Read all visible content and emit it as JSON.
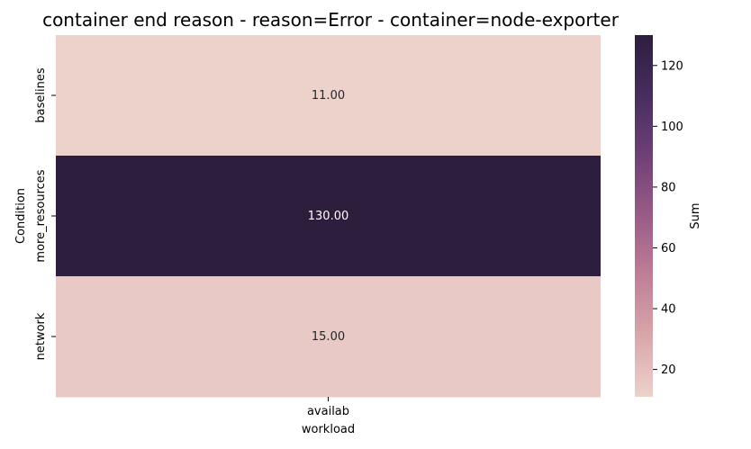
{
  "chart_data": {
    "type": "heatmap",
    "title": "container end reason - reason=Error - container=node-exporter",
    "xlabel": "workload",
    "ylabel": "Condition",
    "x_categories": [
      "availab"
    ],
    "y_categories": [
      "baselines",
      "more_resources",
      "network"
    ],
    "values": [
      [
        11.0
      ],
      [
        130.0
      ],
      [
        15.0
      ]
    ],
    "value_labels": [
      [
        "11.00"
      ],
      [
        "130.00"
      ],
      [
        "15.00"
      ]
    ],
    "colorbar": {
      "label": "Sum",
      "range": [
        11,
        130
      ],
      "ticks": [
        20,
        40,
        60,
        80,
        100,
        120
      ],
      "tick_labels": [
        "20",
        "40",
        "60",
        "80",
        "100",
        "120"
      ],
      "colormap": [
        "#edd1cb",
        "#d9a7ab",
        "#be7f97",
        "#9a5c87",
        "#6f4076",
        "#472e5e",
        "#2d1e3e"
      ]
    },
    "grid": false
  }
}
